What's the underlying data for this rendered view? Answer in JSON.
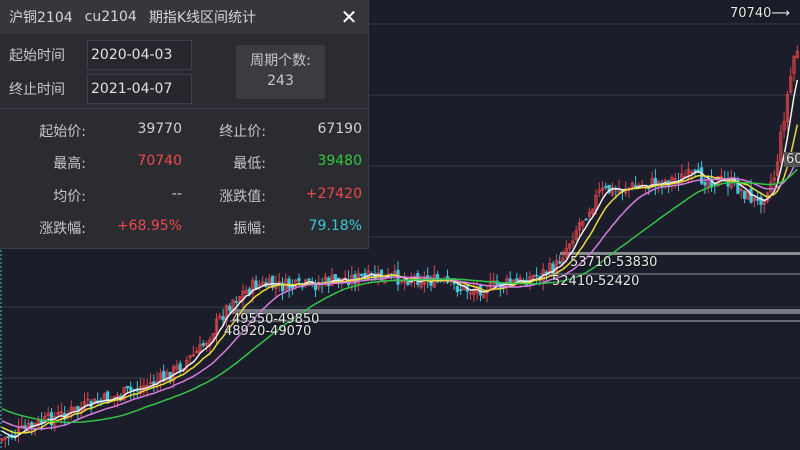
{
  "panel": {
    "title_cn": "沪铜2104",
    "title_code": "cu2104",
    "title_desc": "期指K线区间统计",
    "close_icon": "close-icon",
    "start_label": "起始时间",
    "start_value": "2020-04-03",
    "end_label": "终止时间",
    "end_value": "2021-04-07",
    "count_label": "周期个数:",
    "count_value": "243",
    "stats": {
      "start_price_label": "起始价:",
      "start_price": "39770",
      "end_price_label": "终止价:",
      "end_price": "67190",
      "high_label": "最高:",
      "high": "70740",
      "low_label": "最低:",
      "low": "39480",
      "avg_label": "均价:",
      "avg": "--",
      "change_label": "涨跌值:",
      "change": "+27420",
      "pct_label": "涨跌幅:",
      "pct": "+68.95%",
      "amp_label": "振幅:",
      "amp": "79.18%"
    }
  },
  "chart": {
    "high_marker": "70740⟶",
    "partial_label": "60",
    "zones": [
      "53710-53830",
      "52410-52420",
      "49550-49850",
      "48920-49070"
    ],
    "colors": {
      "up": "#d9434a",
      "down": "#3fc3d8",
      "ma5": "#f0f0f0",
      "ma10": "#e8dc3c",
      "ma20": "#d77be0",
      "ma40": "#33c447",
      "ma60": "#2ea3d6",
      "red_text": "#f04848",
      "green_text": "#2fc93a",
      "cyan_text": "#3cc8d8"
    }
  }
}
